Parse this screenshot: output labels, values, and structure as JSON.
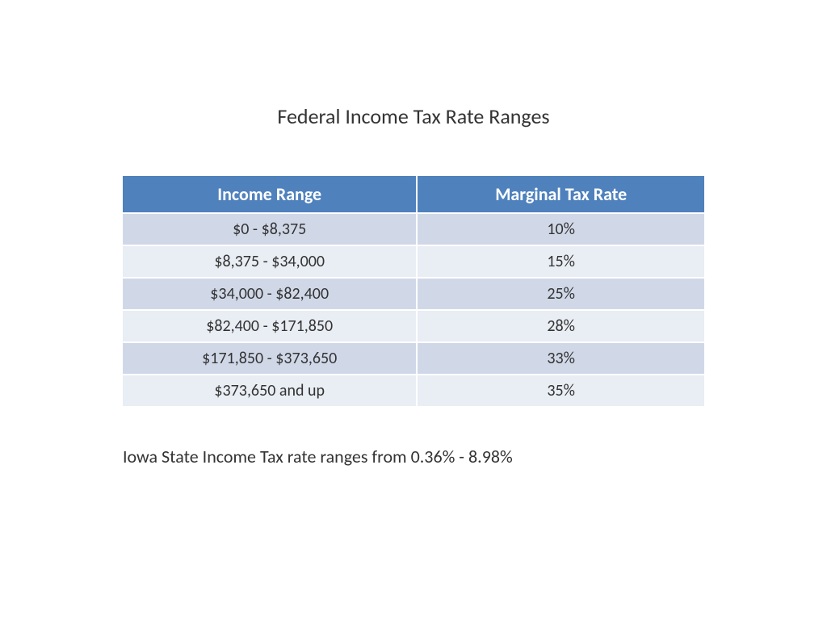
{
  "title": "Federal Income Tax Rate Ranges",
  "table": {
    "type": "table",
    "columns": [
      "Income Range",
      "Marginal Tax Rate"
    ],
    "rows": [
      [
        "$0 - $8,375",
        "10%"
      ],
      [
        "$8,375 - $34,000",
        "15%"
      ],
      [
        "$34,000 - $82,400",
        "25%"
      ],
      [
        "$82,400 - $171,850",
        "28%"
      ],
      [
        "$171,850 - $373,650",
        "33%"
      ],
      [
        "$373,650 and up",
        "35%"
      ]
    ],
    "header_bg_color": "#4f81bd",
    "header_text_color": "#ffffff",
    "row_odd_bg_color": "#d0d8e8",
    "row_even_bg_color": "#e9edf4",
    "cell_text_color": "#333333",
    "border_color": "#ffffff",
    "header_fontsize": 22,
    "cell_fontsize": 20,
    "column_widths": [
      "50%",
      "50%"
    ],
    "text_align": "center"
  },
  "footnote": "Iowa State Income Tax rate ranges from 0.36% - 8.98%",
  "background_color": "#ffffff",
  "title_fontsize": 26,
  "footnote_fontsize": 22
}
